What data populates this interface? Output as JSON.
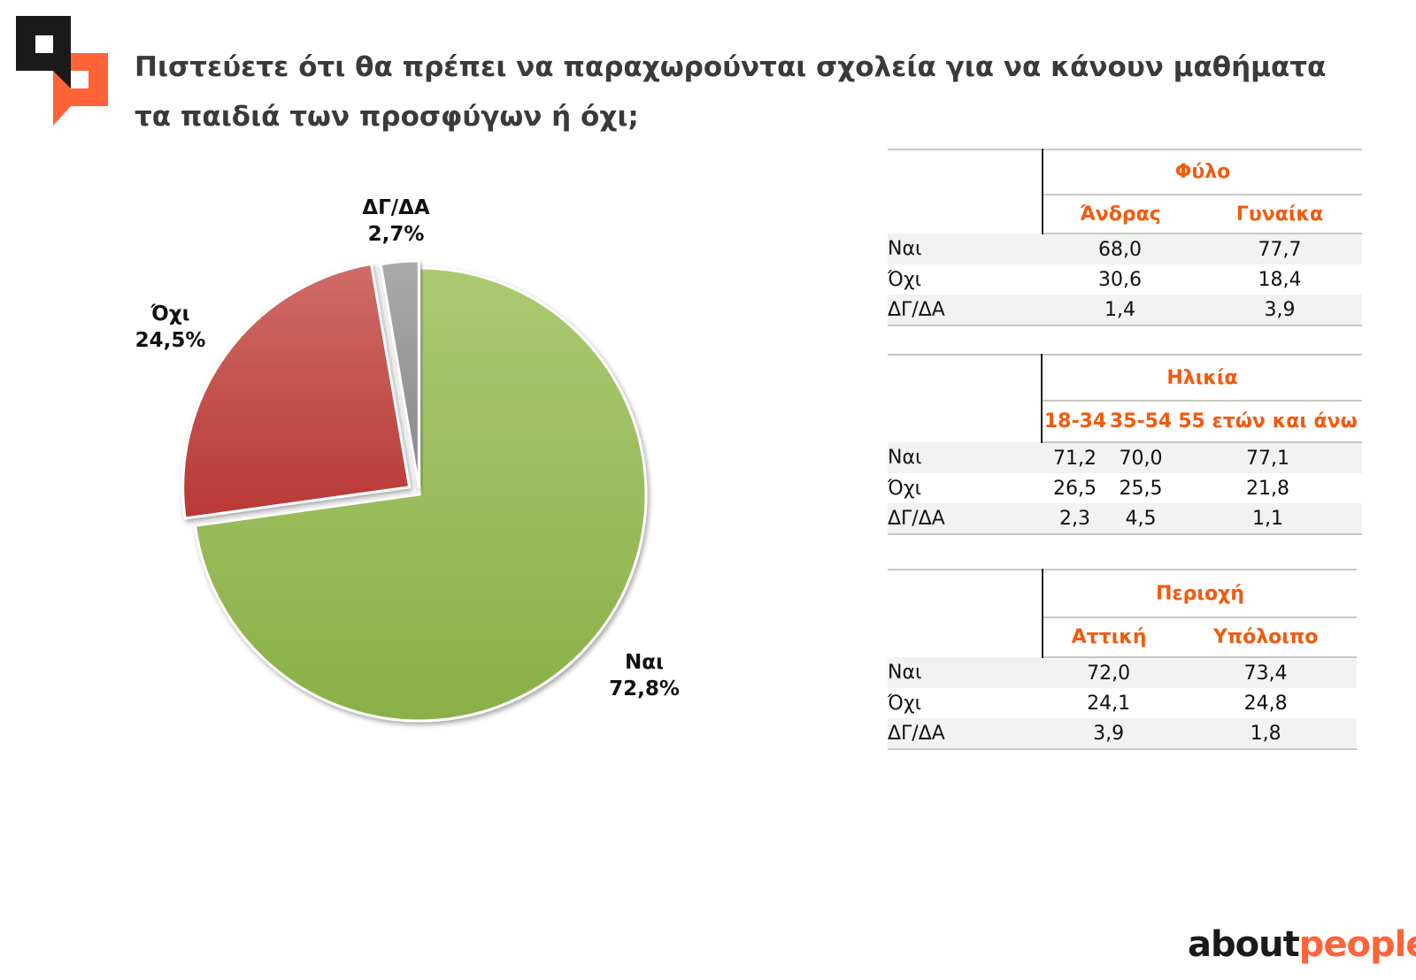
{
  "title_lines": [
    "Πιστεύετε ότι θα πρέπει να παραχωρούνται σχολεία για να κάνουν μαθήματα",
    "τα παιδιά των προσφύγων ή όχι;"
  ],
  "brand": {
    "part1": "about",
    "part2": "people"
  },
  "colors": {
    "accent": "#f25a0f",
    "yes": "#9bbf55",
    "no": "#c4423f",
    "dk": "#999999"
  },
  "chart_data": {
    "type": "pie",
    "categories": [
      "Ναι",
      "Όχι",
      "ΔΓ/ΔΑ"
    ],
    "values": [
      72.8,
      24.5,
      2.7
    ],
    "labels": [
      "72,8%",
      "24,5%",
      "2,7%"
    ]
  },
  "tables": [
    {
      "group": "Φύλο",
      "columns": [
        "Άνδρας",
        "Γυναίκα"
      ],
      "rows": [
        {
          "label": "Ναι",
          "values": [
            "68,0",
            "77,7"
          ]
        },
        {
          "label": "Όχι",
          "values": [
            "30,6",
            "18,4"
          ]
        },
        {
          "label": "ΔΓ/ΔΑ",
          "values": [
            "1,4",
            "3,9"
          ]
        }
      ]
    },
    {
      "group": "Ηλικία",
      "columns": [
        "18-34",
        "35-54",
        "55 ετών και άνω"
      ],
      "rows": [
        {
          "label": "Ναι",
          "values": [
            "71,2",
            "70,0",
            "77,1"
          ]
        },
        {
          "label": "Όχι",
          "values": [
            "26,5",
            "25,5",
            "21,8"
          ]
        },
        {
          "label": "ΔΓ/ΔΑ",
          "values": [
            "2,3",
            "4,5",
            "1,1"
          ]
        }
      ]
    },
    {
      "group": "Περιοχή",
      "columns": [
        "Αττική",
        "Υπόλοιπο"
      ],
      "rows": [
        {
          "label": "Ναι",
          "values": [
            "72,0",
            "73,4"
          ]
        },
        {
          "label": "Όχι",
          "values": [
            "24,1",
            "24,8"
          ]
        },
        {
          "label": "ΔΓ/ΔΑ",
          "values": [
            "3,9",
            "1,8"
          ]
        }
      ]
    }
  ]
}
